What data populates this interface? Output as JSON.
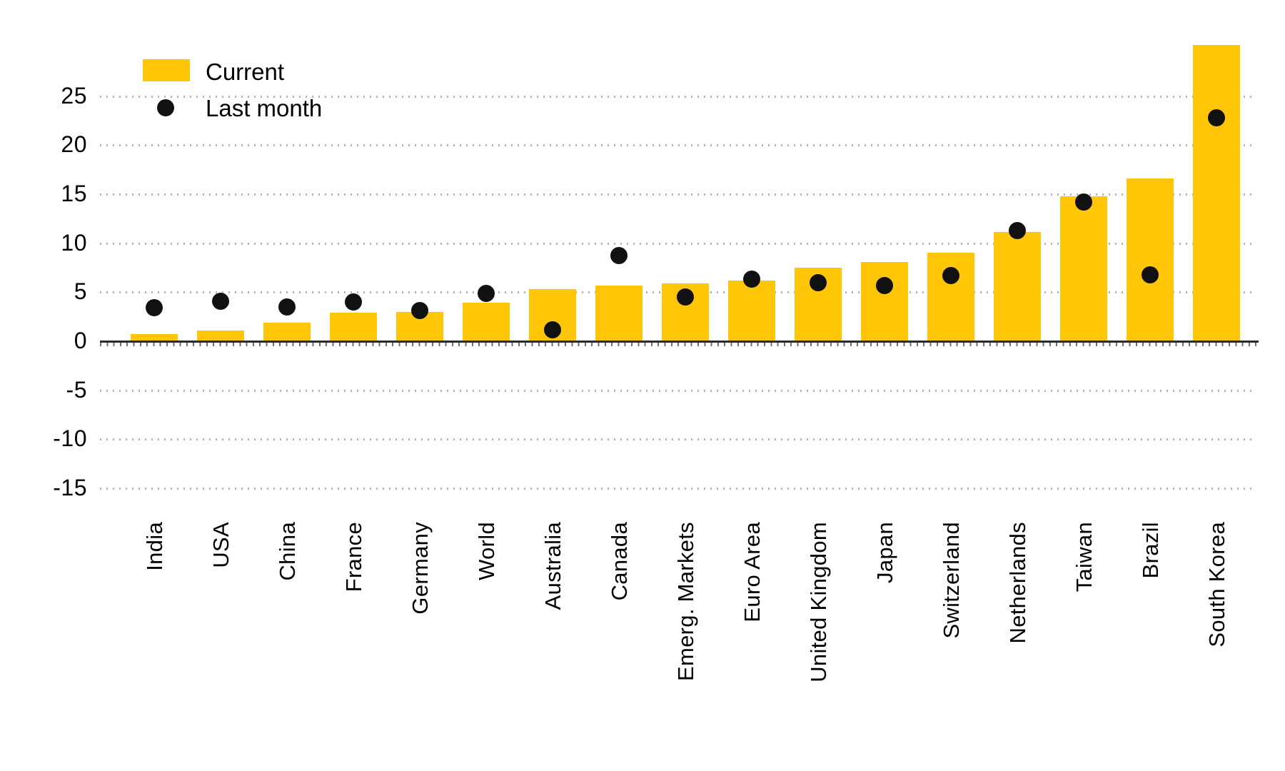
{
  "chart_data": {
    "type": "bar",
    "title": "",
    "categories": [
      "India",
      "USA",
      "China",
      "France",
      "Germany",
      "World",
      "Australia",
      "Canada",
      "Emerg. Markets",
      "Euro Area",
      "United Kingdom",
      "Japan",
      "Switzerland",
      "Netherlands",
      "Taiwan",
      "Brazil",
      "South Korea"
    ],
    "series": [
      {
        "name": "Current",
        "type": "bar",
        "color": "#FFC608",
        "values": [
          0.7,
          1.1,
          1.9,
          2.9,
          3.0,
          3.9,
          5.3,
          5.7,
          5.9,
          6.2,
          7.5,
          8.1,
          9.0,
          11.1,
          14.8,
          16.6,
          30.2
        ]
      },
      {
        "name": "Last month",
        "type": "scatter",
        "color": "#111111",
        "values": [
          3.4,
          4.1,
          3.5,
          4.0,
          3.1,
          4.9,
          1.2,
          8.7,
          4.5,
          6.3,
          6.0,
          5.7,
          6.7,
          11.3,
          14.2,
          6.8,
          22.8
        ]
      }
    ],
    "xlabel": "",
    "ylabel": "",
    "ylim": [
      -16.5,
      31.5
    ],
    "yticks": [
      25,
      20,
      15,
      10,
      5,
      0,
      -5,
      -10,
      -15
    ],
    "ytick_labels": [
      "25",
      "20",
      "15",
      "10",
      "5",
      "0",
      "-5",
      "-10",
      "-15"
    ],
    "grid": "horizontal-dotted",
    "legend_position": "top-left"
  },
  "legend": {
    "items": [
      {
        "label": "Current",
        "marker": "bar-swatch"
      },
      {
        "label": "Last month",
        "marker": "dot"
      }
    ]
  },
  "colors": {
    "bar": "#FFC608",
    "dot": "#111111",
    "gridline": "#b3b3b3",
    "axis": "#2b2b2b",
    "background": "#ffffff",
    "text": "#000000"
  }
}
